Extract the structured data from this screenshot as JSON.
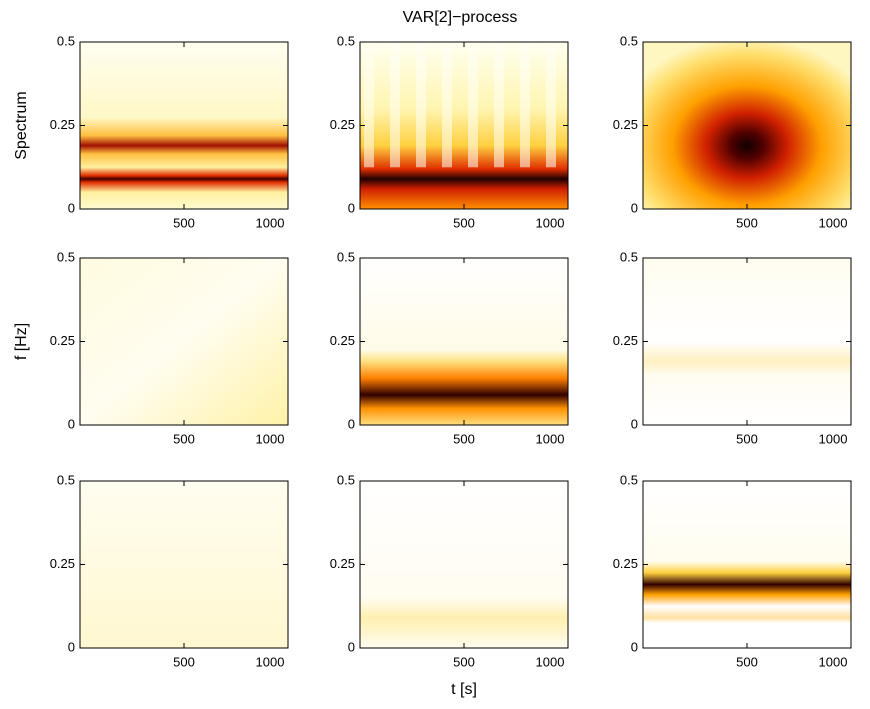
{
  "chart_data": [
    {
      "type": "heatmap",
      "title": "VAR[2]−process",
      "ylabel": "Spectrum",
      "xlim": [
        0,
        1000
      ],
      "xticks": [
        500,
        1000
      ],
      "ylim": [
        0,
        0.5
      ],
      "yticks": [
        0,
        0.25,
        0.5
      ]
    },
    {
      "type": "heatmap",
      "xlim": [
        0,
        1000
      ],
      "xticks": [
        500,
        1000
      ],
      "ylim": [
        0,
        0.5
      ],
      "yticks": [
        0,
        0.25,
        0.5
      ]
    },
    {
      "type": "heatmap",
      "xlim": [
        0,
        1000
      ],
      "xticks": [
        500,
        1000
      ],
      "ylim": [
        0,
        0.5
      ],
      "yticks": [
        0,
        0.25,
        0.5
      ]
    },
    {
      "type": "heatmap",
      "ylabel": "f [Hz]",
      "xlim": [
        0,
        1000
      ],
      "xticks": [
        500,
        1000
      ],
      "ylim": [
        0,
        0.5
      ],
      "yticks": [
        0,
        0.25,
        0.5
      ]
    },
    {
      "type": "heatmap",
      "xlim": [
        0,
        1000
      ],
      "xticks": [
        500,
        1000
      ],
      "ylim": [
        0,
        0.5
      ],
      "yticks": [
        0,
        0.25,
        0.5
      ]
    },
    {
      "type": "heatmap",
      "xlim": [
        0,
        1000
      ],
      "xticks": [
        500,
        1000
      ],
      "ylim": [
        0,
        0.5
      ],
      "yticks": [
        0,
        0.25,
        0.5
      ]
    },
    {
      "type": "heatmap",
      "xlim": [
        0,
        1000
      ],
      "xticks": [
        500,
        1000
      ],
      "ylim": [
        0,
        0.5
      ],
      "yticks": [
        0,
        0.25,
        0.5
      ]
    },
    {
      "type": "heatmap",
      "xlabel": "t [s]",
      "xlim": [
        0,
        1000
      ],
      "xticks": [
        500,
        1000
      ],
      "ylim": [
        0,
        0.5
      ],
      "yticks": [
        0,
        0.25,
        0.5
      ]
    },
    {
      "type": "heatmap",
      "xlim": [
        0,
        1000
      ],
      "xticks": [
        500,
        1000
      ],
      "ylim": [
        0,
        0.5
      ],
      "yticks": [
        0,
        0.25,
        0.5
      ]
    }
  ]
}
